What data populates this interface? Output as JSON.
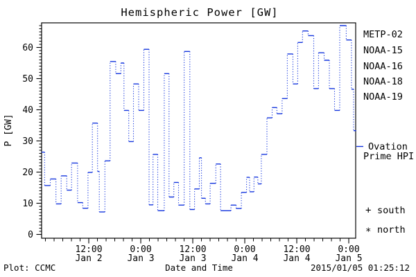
{
  "title": "Hemispheric Power [GW]",
  "y_axis_label": "P [GW]",
  "footer": {
    "plot_credit": "Plot: CCMC",
    "x_axis_title": "Date and Time",
    "timestamp": "2015/01/05 01:25:12"
  },
  "legend": {
    "satellites": [
      {
        "label": "METP-02",
        "color": "#000000"
      },
      {
        "label": "NOAA-15",
        "color": "#1133dd"
      },
      {
        "label": "NOAA-16",
        "color": "#22bbee"
      },
      {
        "label": "NOAA-18",
        "color": "#55cc77"
      },
      {
        "label": "NOAA-19",
        "color": "#ee9922"
      }
    ],
    "model_line": {
      "label_line1": "Ovation",
      "label_line2": "Prime HPI",
      "color": "#1133dd"
    },
    "hemisphere_markers": {
      "south": {
        "symbol": "+",
        "label": "south"
      },
      "north": {
        "symbol": "*",
        "label": "north"
      },
      "color": "#000000"
    }
  },
  "chart_data": {
    "type": "line",
    "title": "Hemispheric Power [GW]",
    "xlabel": "Date and Time",
    "ylabel": "P [GW]",
    "x_start": "2015-01-02 01:25",
    "x_end": "2015-01-05 01:25",
    "x_span_hours": 72,
    "ylim": [
      0,
      67
    ],
    "y_ticks": [
      0,
      10,
      20,
      30,
      40,
      50,
      60
    ],
    "y_minor_step_gw": 1,
    "x_minor_step_hours": 2,
    "grid": false,
    "legend_position": "right",
    "x_ticks": [
      {
        "t": 10.58,
        "time": "12:00",
        "date": "Jan 2"
      },
      {
        "t": 22.58,
        "time": "0:00",
        "date": "Jan 3"
      },
      {
        "t": 34.58,
        "time": "12:00",
        "date": "Jan 3"
      },
      {
        "t": 46.58,
        "time": "0:00",
        "date": "Jan 4"
      },
      {
        "t": 58.58,
        "time": "12:00",
        "date": "Jan 4"
      },
      {
        "t": 70.58,
        "time": "0:00",
        "date": "Jan 5"
      }
    ],
    "series": [
      {
        "name": "Ovation Prime HPI",
        "color": "#1133dd",
        "style": "step: solid level segments joined by dotted vertical connectors",
        "points_hours_gw": [
          [
            0,
            26.4
          ],
          [
            0.4,
            15.7
          ],
          [
            1.7,
            17.8
          ],
          [
            3.0,
            9.8
          ],
          [
            4.2,
            18.8
          ],
          [
            5.5,
            14.2
          ],
          [
            6.6,
            22.9
          ],
          [
            8.0,
            10.2
          ],
          [
            9.2,
            8.4
          ],
          [
            10.4,
            19.9
          ],
          [
            11.4,
            35.7
          ],
          [
            12.6,
            20.2
          ],
          [
            13.0,
            7.2
          ],
          [
            14.3,
            23.6
          ],
          [
            15.5,
            55.5
          ],
          [
            16.8,
            51.6
          ],
          [
            18.0,
            55.0
          ],
          [
            18.7,
            39.8
          ],
          [
            19.8,
            29.8
          ],
          [
            20.9,
            48.3
          ],
          [
            22.1,
            39.8
          ],
          [
            23.3,
            59.4
          ],
          [
            24.5,
            9.5
          ],
          [
            25.4,
            25.7
          ],
          [
            26.5,
            7.6
          ],
          [
            28.0,
            51.6
          ],
          [
            29.1,
            12.0
          ],
          [
            30.2,
            16.7
          ],
          [
            31.3,
            9.4
          ],
          [
            32.6,
            58.7
          ],
          [
            33.9,
            8.0
          ],
          [
            35.0,
            14.6
          ],
          [
            36.1,
            24.6
          ],
          [
            36.6,
            11.6
          ],
          [
            37.5,
            9.8
          ],
          [
            38.6,
            16.4
          ],
          [
            39.9,
            22.6
          ],
          [
            41.0,
            7.6
          ],
          [
            43.4,
            9.4
          ],
          [
            44.6,
            8.3
          ],
          [
            45.8,
            13.5
          ],
          [
            47.0,
            18.3
          ],
          [
            47.7,
            13.7
          ],
          [
            48.7,
            18.4
          ],
          [
            49.6,
            16.2
          ],
          [
            50.4,
            25.7
          ],
          [
            51.7,
            37.4
          ],
          [
            52.9,
            40.7
          ],
          [
            54.0,
            38.7
          ],
          [
            55.2,
            43.6
          ],
          [
            56.4,
            57.9
          ],
          [
            57.7,
            48.3
          ],
          [
            58.8,
            61.6
          ],
          [
            59.9,
            65.3
          ],
          [
            61.2,
            63.8
          ],
          [
            62.5,
            46.8
          ],
          [
            63.6,
            58.3
          ],
          [
            64.9,
            55.9
          ],
          [
            66.1,
            46.8
          ],
          [
            67.3,
            39.8
          ],
          [
            68.5,
            67.0
          ],
          [
            70.0,
            62.4
          ],
          [
            71.2,
            46.6
          ],
          [
            71.7,
            33.3
          ],
          [
            72.3,
            33.3
          ]
        ]
      }
    ]
  }
}
